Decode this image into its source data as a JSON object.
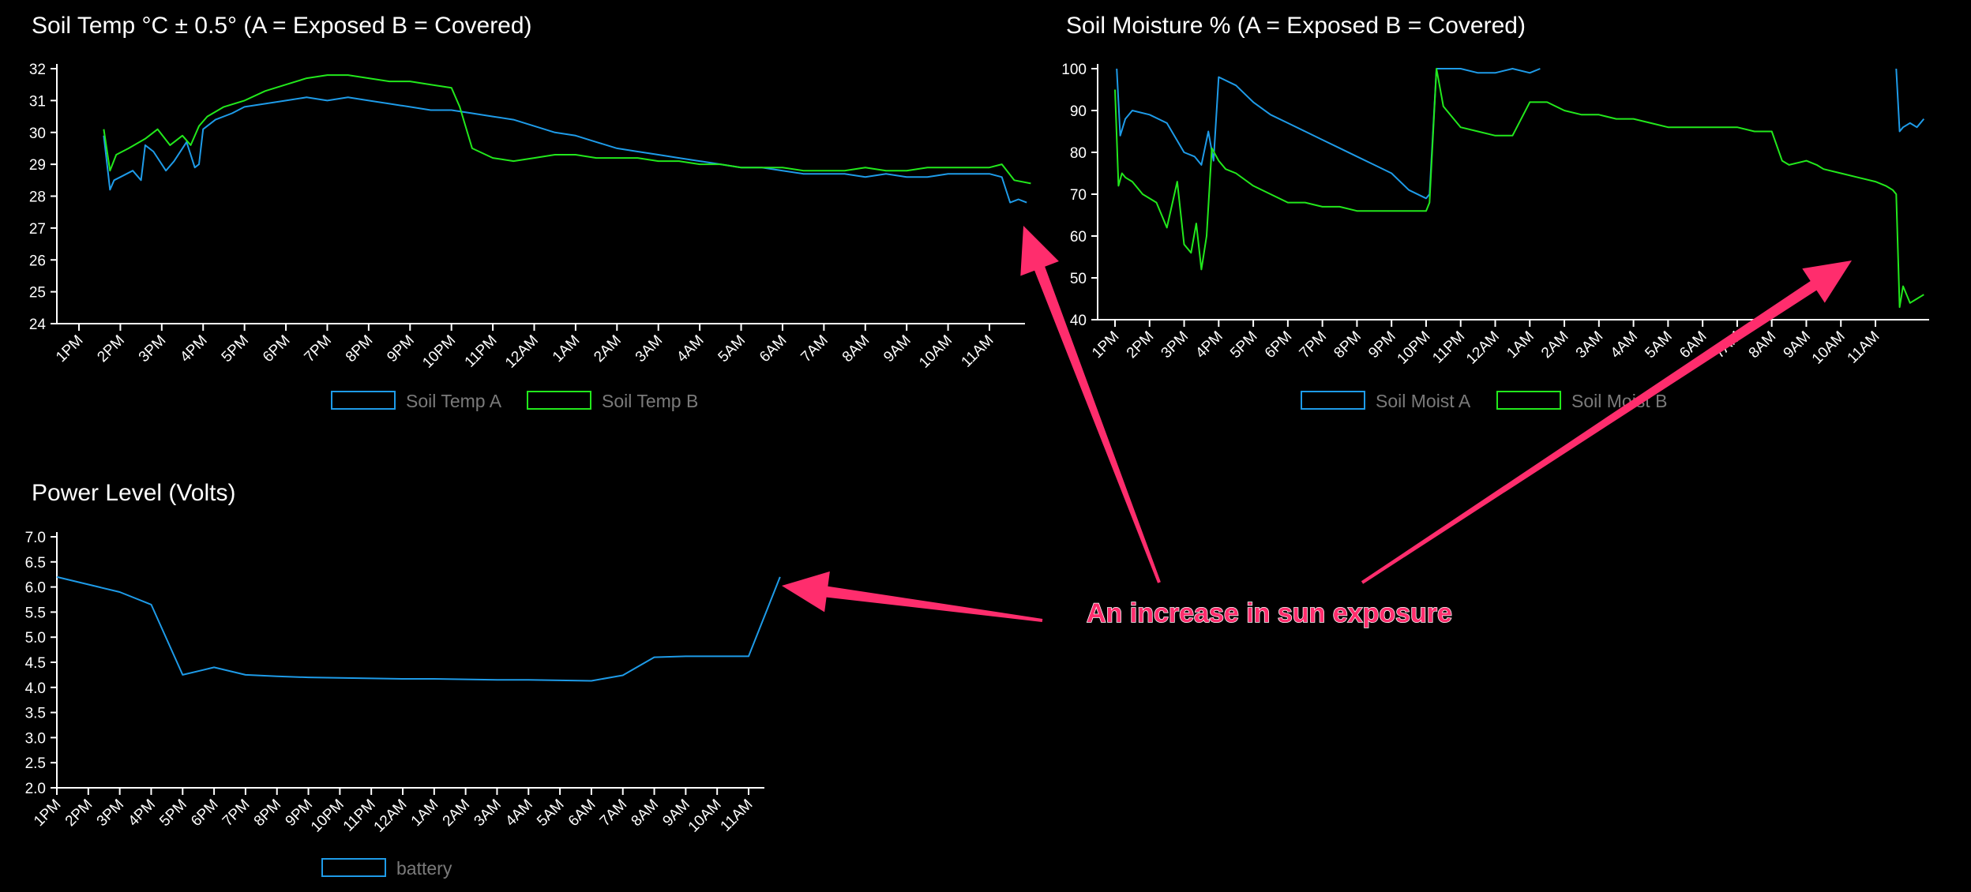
{
  "colors": {
    "series_a": "#1e9be8",
    "series_b": "#22e81c",
    "axis": "#ffffff",
    "legend_text": "#7a7a7a",
    "annotation": "#ff2d6d"
  },
  "annotation": {
    "text": "An increase in sun exposure"
  },
  "chart_data": [
    {
      "id": "soil-temp",
      "type": "line",
      "title": "Soil Temp °C ± 0.5° (A = Exposed B = Covered)",
      "xlabel": "",
      "ylabel": "",
      "ylim": [
        24,
        32
      ],
      "y_ticks": [
        24,
        25,
        26,
        27,
        28,
        29,
        30,
        31,
        32
      ],
      "categories": [
        "1PM",
        "2PM",
        "3PM",
        "4PM",
        "5PM",
        "6PM",
        "7PM",
        "8PM",
        "9PM",
        "10PM",
        "11PM",
        "12AM",
        "1AM",
        "2AM",
        "3AM",
        "4AM",
        "5AM",
        "6AM",
        "7AM",
        "8AM",
        "9AM",
        "10AM",
        "11AM"
      ],
      "x_range": [
        0.6,
        23.0
      ],
      "legend_position": "bottom",
      "grid": false,
      "series": [
        {
          "name": "Soil Temp A",
          "color_key": "series_a",
          "x": [
            0.6,
            0.75,
            0.85,
            1.0,
            1.3,
            1.5,
            1.6,
            1.8,
            2.1,
            2.3,
            2.6,
            2.8,
            2.9,
            3.0,
            3.3,
            3.7,
            4.0,
            4.5,
            5.0,
            5.5,
            6.0,
            6.5,
            7.0,
            7.5,
            8.0,
            8.5,
            9.0,
            9.5,
            10.0,
            10.5,
            11.0,
            11.5,
            12.0,
            12.5,
            13.0,
            13.5,
            14.0,
            14.5,
            15.0,
            15.5,
            16.0,
            16.5,
            17.0,
            17.5,
            18.0,
            18.5,
            19.0,
            19.5,
            20.0,
            20.5,
            21.0,
            21.5,
            22.0,
            22.3,
            22.5,
            22.7,
            22.9
          ],
          "y": [
            29.9,
            28.2,
            28.5,
            28.6,
            28.8,
            28.5,
            29.6,
            29.4,
            28.8,
            29.1,
            29.7,
            28.9,
            29.0,
            30.1,
            30.4,
            30.6,
            30.8,
            30.9,
            31.0,
            31.1,
            31.0,
            31.1,
            31.0,
            30.9,
            30.8,
            30.7,
            30.7,
            30.6,
            30.5,
            30.4,
            30.2,
            30.0,
            29.9,
            29.7,
            29.5,
            29.4,
            29.3,
            29.2,
            29.1,
            29.0,
            28.9,
            28.9,
            28.8,
            28.7,
            28.7,
            28.7,
            28.6,
            28.7,
            28.6,
            28.6,
            28.7,
            28.7,
            28.7,
            28.6,
            27.8,
            27.9,
            27.8
          ]
        },
        {
          "name": "Soil Temp B",
          "color_key": "series_b",
          "x": [
            0.6,
            0.75,
            0.9,
            1.2,
            1.6,
            1.9,
            2.2,
            2.5,
            2.7,
            2.9,
            3.1,
            3.5,
            4.0,
            4.5,
            5.0,
            5.5,
            6.0,
            6.5,
            7.0,
            7.5,
            8.0,
            8.5,
            9.0,
            9.2,
            9.5,
            10.0,
            10.5,
            11.0,
            11.5,
            12.0,
            12.5,
            13.0,
            13.5,
            14.0,
            14.5,
            15.0,
            15.5,
            16.0,
            16.5,
            17.0,
            17.5,
            18.0,
            18.5,
            19.0,
            19.5,
            20.0,
            20.5,
            21.0,
            21.5,
            22.0,
            22.3,
            22.6,
            23.0
          ],
          "y": [
            30.1,
            28.8,
            29.3,
            29.5,
            29.8,
            30.1,
            29.6,
            29.9,
            29.6,
            30.2,
            30.5,
            30.8,
            31.0,
            31.3,
            31.5,
            31.7,
            31.8,
            31.8,
            31.7,
            31.6,
            31.6,
            31.5,
            31.4,
            30.8,
            29.5,
            29.2,
            29.1,
            29.2,
            29.3,
            29.3,
            29.2,
            29.2,
            29.2,
            29.1,
            29.1,
            29.0,
            29.0,
            28.9,
            28.9,
            28.9,
            28.8,
            28.8,
            28.8,
            28.9,
            28.8,
            28.8,
            28.9,
            28.9,
            28.9,
            28.9,
            29.0,
            28.5,
            28.4
          ]
        }
      ]
    },
    {
      "id": "soil-moisture",
      "type": "line",
      "title": "Soil Moisture % (A = Exposed B = Covered)",
      "xlabel": "",
      "ylabel": "",
      "ylim": [
        40,
        100
      ],
      "y_ticks": [
        40,
        50,
        60,
        70,
        80,
        90,
        100
      ],
      "categories": [
        "1PM",
        "2PM",
        "3PM",
        "4PM",
        "5PM",
        "6PM",
        "7PM",
        "8PM",
        "9PM",
        "10PM",
        "11PM",
        "12AM",
        "1AM",
        "2AM",
        "3AM",
        "4AM",
        "5AM",
        "6AM",
        "7AM",
        "8AM",
        "9AM",
        "10AM",
        "11AM"
      ],
      "x_range": [
        0.0,
        23.5
      ],
      "legend_position": "bottom",
      "grid": false,
      "series": [
        {
          "name": "Soil Moist A",
          "color_key": "series_a",
          "segments": [
            {
              "x": [
                0.05,
                0.15,
                0.3,
                0.5,
                1.0,
                1.5,
                2.0,
                2.3,
                2.5,
                2.7,
                2.85,
                3.0,
                3.5,
                4.0,
                4.5,
                5.0,
                5.5,
                6.0,
                6.5,
                7.0,
                7.5,
                8.0,
                8.5,
                9.0,
                9.1,
                9.3
              ],
              "y": [
                100,
                84,
                88,
                90,
                89,
                87,
                80,
                79,
                77,
                85,
                78,
                98,
                96,
                92,
                89,
                87,
                85,
                83,
                81,
                79,
                77,
                75,
                71,
                69,
                70,
                100
              ]
            },
            {
              "x": [
                9.3,
                10.0,
                10.5,
                11.0,
                11.5,
                12.0,
                12.3
              ],
              "y": [
                100,
                100,
                99,
                99,
                100,
                99,
                100
              ]
            },
            {
              "x": [
                22.6,
                22.7,
                22.8,
                23.0,
                23.2,
                23.4
              ],
              "y": [
                100,
                85,
                86,
                87,
                86,
                88
              ]
            }
          ]
        },
        {
          "name": "Soil Moist B",
          "color_key": "series_b",
          "segments": [
            {
              "x": [
                0.0,
                0.1,
                0.2,
                0.3,
                0.5,
                0.8,
                1.2,
                1.5,
                1.8,
                2.0,
                2.2,
                2.35,
                2.5,
                2.65,
                2.8,
                3.0,
                3.2,
                3.5,
                4.0,
                4.5,
                5.0,
                5.5,
                6.0,
                6.5,
                7.0,
                7.5,
                8.0,
                8.5,
                9.0,
                9.1,
                9.3,
                9.5,
                10.0,
                10.5,
                11.0,
                11.5,
                12.0,
                12.5,
                13.0,
                13.5,
                14.0,
                14.5,
                15.0,
                15.5,
                16.0,
                16.5,
                17.0,
                17.5,
                18.0,
                18.5,
                19.0,
                19.3,
                19.5,
                20.0,
                20.3,
                20.5,
                21.0,
                21.5,
                22.0,
                22.3,
                22.5,
                22.6,
                22.7,
                22.8,
                23.0,
                23.2,
                23.4
              ],
              "y": [
                95,
                72,
                75,
                74,
                73,
                70,
                68,
                62,
                73,
                58,
                56,
                63,
                52,
                60,
                81,
                78,
                76,
                75,
                72,
                70,
                68,
                68,
                67,
                67,
                66,
                66,
                66,
                66,
                66,
                68,
                100,
                91,
                86,
                85,
                84,
                84,
                92,
                92,
                90,
                89,
                89,
                88,
                88,
                87,
                86,
                86,
                86,
                86,
                86,
                85,
                85,
                78,
                77,
                78,
                77,
                76,
                75,
                74,
                73,
                72,
                71,
                70,
                43,
                48,
                44,
                45,
                46
              ]
            }
          ]
        }
      ]
    },
    {
      "id": "power-level",
      "type": "line",
      "title": "Power Level (Volts)",
      "xlabel": "",
      "ylabel": "",
      "ylim": [
        2.0,
        7.0
      ],
      "y_ticks": [
        "2.0",
        "2.5",
        "3.0",
        "3.5",
        "4.0",
        "4.5",
        "5.0",
        "5.5",
        "6.0",
        "6.5",
        "7.0"
      ],
      "categories": [
        "1PM",
        "2PM",
        "3PM",
        "4PM",
        "5PM",
        "6PM",
        "7PM",
        "8PM",
        "9PM",
        "10PM",
        "11PM",
        "12AM",
        "1AM",
        "2AM",
        "3AM",
        "4AM",
        "5AM",
        "6AM",
        "7AM",
        "8AM",
        "9AM",
        "10AM",
        "11AM"
      ],
      "x_range": [
        0.0,
        23.0
      ],
      "legend_position": "bottom",
      "grid": false,
      "series": [
        {
          "name": "battery",
          "color_key": "series_a",
          "x": [
            0,
            2,
            3,
            4,
            5,
            6,
            7,
            8,
            9,
            10,
            11,
            12,
            13,
            14,
            15,
            16,
            17,
            18,
            19,
            20,
            21,
            22,
            23
          ],
          "y": [
            6.2,
            5.9,
            5.65,
            4.25,
            4.4,
            4.25,
            4.22,
            4.2,
            4.19,
            4.18,
            4.17,
            4.17,
            4.16,
            4.15,
            4.15,
            4.14,
            4.13,
            4.24,
            4.6,
            4.62,
            4.62,
            4.62,
            6.2
          ]
        }
      ]
    }
  ]
}
